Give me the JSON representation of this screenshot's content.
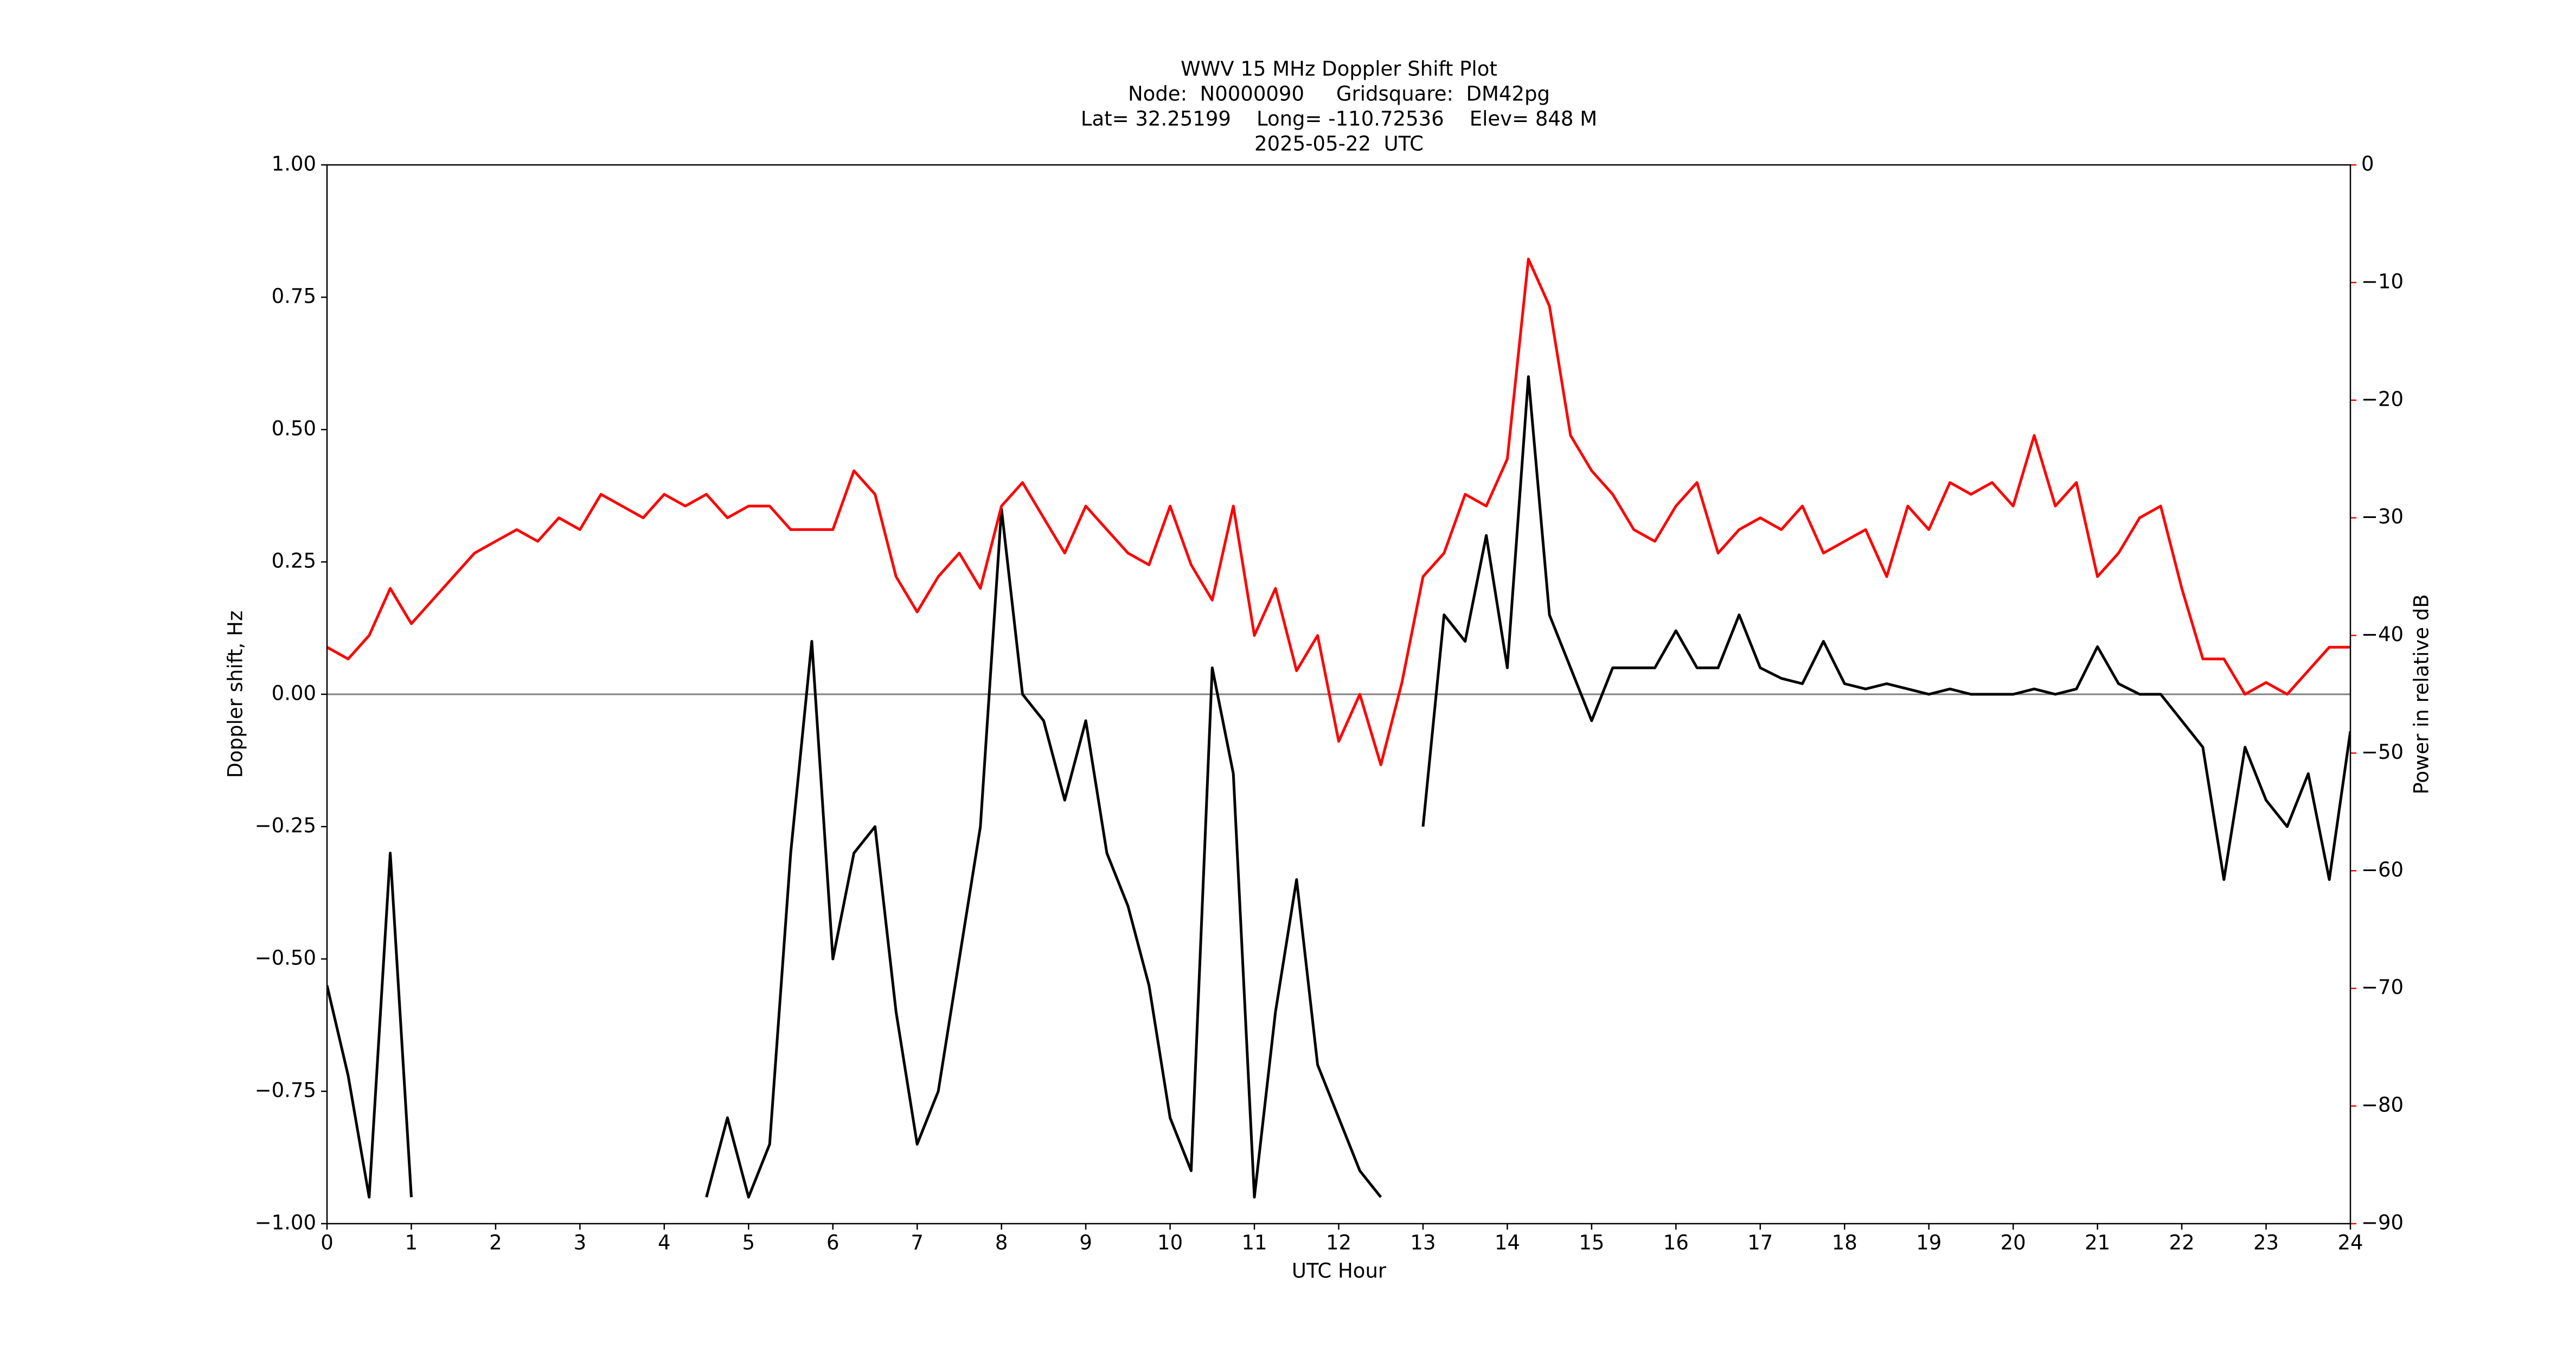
{
  "chart_data": {
    "type": "line",
    "title": [
      "WWV 15 MHz Doppler Shift Plot",
      "Node:  N0000090     Gridsquare:  DM42pg",
      "Lat= 32.25199    Long= -110.72536    Elev= 848 M",
      "2025-05-22  UTC"
    ],
    "xlabel": "UTC Hour",
    "ylabel": "Doppler shift, Hz",
    "y2label": "Power in relative dB",
    "x": [
      0,
      0.25,
      0.5,
      0.75,
      1,
      1.25,
      1.5,
      1.75,
      2,
      2.25,
      2.5,
      2.75,
      3,
      3.25,
      3.5,
      3.75,
      4,
      4.25,
      4.5,
      4.75,
      5,
      5.25,
      5.5,
      5.75,
      6,
      6.25,
      6.5,
      6.75,
      7,
      7.25,
      7.5,
      7.75,
      8,
      8.25,
      8.5,
      8.75,
      9,
      9.25,
      9.5,
      9.75,
      10,
      10.25,
      10.5,
      10.75,
      11,
      11.25,
      11.5,
      11.75,
      12,
      12.25,
      12.5,
      12.75,
      13,
      13.25,
      13.5,
      13.75,
      14,
      14.25,
      14.5,
      14.75,
      15,
      15.25,
      15.5,
      15.75,
      16,
      16.25,
      16.5,
      16.75,
      17,
      17.25,
      17.5,
      17.75,
      18,
      18.25,
      18.5,
      18.75,
      19,
      19.25,
      19.5,
      19.75,
      20,
      20.25,
      20.5,
      20.75,
      21,
      21.25,
      21.5,
      21.75,
      22,
      22.25,
      22.5,
      22.75,
      23,
      23.25,
      23.5,
      23.75,
      24
    ],
    "series": [
      {
        "color": "#000000",
        "values": [
          -0.55,
          -0.72,
          -0.95,
          -0.3,
          -0.95,
          null,
          null,
          null,
          null,
          null,
          null,
          null,
          null,
          null,
          null,
          null,
          null,
          null,
          -0.95,
          -0.8,
          -0.95,
          -0.85,
          -0.3,
          0.1,
          -0.5,
          -0.3,
          -0.25,
          -0.6,
          -0.85,
          -0.75,
          -0.5,
          -0.25,
          0.35,
          0.0,
          -0.05,
          -0.2,
          -0.05,
          -0.3,
          -0.4,
          -0.55,
          -0.8,
          -0.9,
          0.05,
          -0.15,
          -0.95,
          -0.6,
          -0.35,
          -0.7,
          -0.8,
          -0.9,
          -0.95,
          null,
          -0.25,
          0.15,
          0.1,
          0.3,
          0.05,
          0.6,
          0.15,
          0.05,
          -0.05,
          0.05,
          0.05,
          0.05,
          0.12,
          0.05,
          0.05,
          0.15,
          0.05,
          0.03,
          0.02,
          0.1,
          0.02,
          0.01,
          0.02,
          0.01,
          0.0,
          0.01,
          0.0,
          0.0,
          0.0,
          0.01,
          0.0,
          0.01,
          0.09,
          0.02,
          0.0,
          0.0,
          -0.05,
          -0.1,
          -0.35,
          -0.1,
          -0.2,
          -0.25,
          -0.15,
          -0.35,
          -0.07
        ]
      },
      {
        "color": "#ff0000",
        "axis": "y2",
        "values": [
          -41,
          -42,
          -40,
          -36,
          -39,
          -37,
          -35,
          -33,
          -32,
          -31,
          -32,
          -30,
          -31,
          -28,
          -29,
          -30,
          -28,
          -29,
          -28,
          -30,
          -29,
          -29,
          -31,
          -31,
          -31,
          -26,
          -28,
          -35,
          -38,
          -35,
          -33,
          -36,
          -29,
          -27,
          -30,
          -33,
          -29,
          -31,
          -33,
          -34,
          -29,
          -34,
          -37,
          -29,
          -40,
          -36,
          -43,
          -40,
          -49,
          -45,
          -51,
          -44,
          -35,
          -33,
          -28,
          -29,
          -25,
          -8,
          -12,
          -23,
          -26,
          -28,
          -31,
          -32,
          -29,
          -27,
          -33,
          -31,
          -30,
          -31,
          -29,
          -33,
          -32,
          -31,
          -35,
          -29,
          -31,
          -27,
          -28,
          -27,
          -29,
          -23,
          -29,
          -27,
          -35,
          -33,
          -30,
          -29,
          -36,
          -42,
          -42,
          -45,
          -44,
          -45,
          -43,
          -41,
          -41
        ]
      }
    ],
    "xlim": [
      0,
      24
    ],
    "xticks": [
      0,
      1,
      2,
      3,
      4,
      5,
      6,
      7,
      8,
      9,
      10,
      11,
      12,
      13,
      14,
      15,
      16,
      17,
      18,
      19,
      20,
      21,
      22,
      23,
      24
    ],
    "ylim": [
      -1,
      1
    ],
    "yticks": [
      {
        "value": -1,
        "label": "−1.00"
      },
      {
        "value": -0.75,
        "label": "−0.75"
      },
      {
        "value": -0.5,
        "label": "−0.50"
      },
      {
        "value": -0.25,
        "label": "−0.25"
      },
      {
        "value": 0,
        "label": "0.00"
      },
      {
        "value": 0.25,
        "label": "0.25"
      },
      {
        "value": 0.5,
        "label": "0.50"
      },
      {
        "value": 0.75,
        "label": "0.75"
      },
      {
        "value": 1,
        "label": "1.00"
      }
    ],
    "y2lim": [
      -90,
      0
    ],
    "y2ticks": [
      {
        "value": -90,
        "label": "−90"
      },
      {
        "value": -80,
        "label": "−80"
      },
      {
        "value": -70,
        "label": "−70"
      },
      {
        "value": -60,
        "label": "−60"
      },
      {
        "value": -50,
        "label": "−50"
      },
      {
        "value": -40,
        "label": "−40"
      },
      {
        "value": -30,
        "label": "−30"
      },
      {
        "value": -20,
        "label": "−20"
      },
      {
        "value": -10,
        "label": "−10"
      },
      0
    ],
    "y2color": "#ff0000",
    "grid": false
  }
}
